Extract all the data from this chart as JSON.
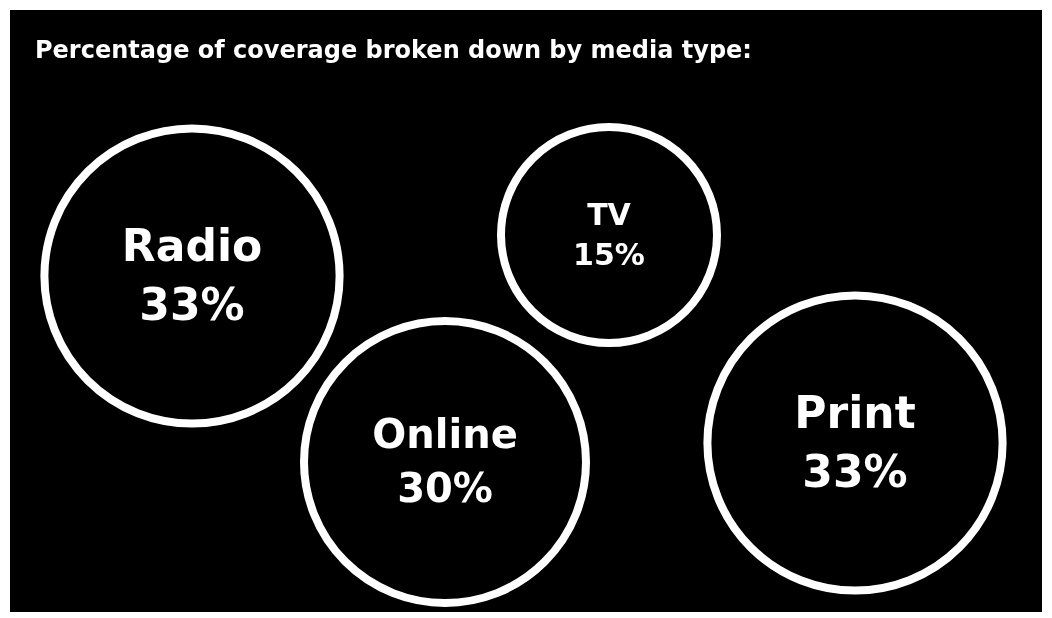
{
  "chart_data": {
    "type": "other",
    "title": "Percentage of coverage broken down by media type:",
    "categories": [
      "Radio",
      "TV",
      "Online",
      "Print"
    ],
    "values": [
      33,
      15,
      30,
      33
    ],
    "value_labels": [
      "33%",
      "15%",
      "30%",
      "33%"
    ],
    "color": "#ffffff"
  }
}
